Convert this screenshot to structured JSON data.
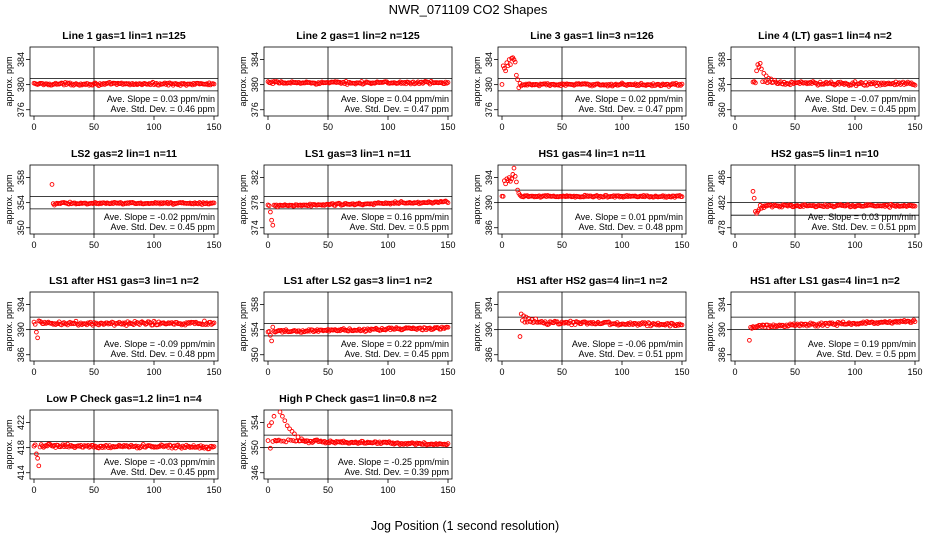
{
  "figure": {
    "title": "NWR_071109  CO2 Shapes",
    "xlabel": "Jog Position (1 second resolution)",
    "ylabel": "approx. ppm",
    "slope_label": "Ave. Slope = ",
    "slope_unit": " ppm/min",
    "sd_label": "Ave. Std. Dev. = ",
    "sd_unit": " ppm",
    "point_color": "#ff0000",
    "axis_color": "#000000"
  },
  "chart_data": [
    {
      "type": "scatter",
      "title": "Line 1 gas=1 lin=1 n=125",
      "xlim": [
        0,
        150
      ],
      "ylim": [
        375,
        386
      ],
      "xticks": [
        0,
        50,
        100,
        150
      ],
      "yticks": [
        376,
        380,
        384
      ],
      "hlines": [
        379,
        381
      ],
      "vline": 50,
      "x_start": 0,
      "profile": {
        "base": 380.1,
        "trend": 0.0,
        "noise": 0.2,
        "spikes": []
      },
      "slope": "0.03",
      "sd": "0.46"
    },
    {
      "type": "scatter",
      "title": "Line 2 gas=1 lin=2 n=125",
      "xlim": [
        0,
        150
      ],
      "ylim": [
        375,
        386
      ],
      "xticks": [
        0,
        50,
        100,
        150
      ],
      "yticks": [
        376,
        380,
        384
      ],
      "hlines": [
        379,
        381
      ],
      "vline": 50,
      "x_start": 0,
      "profile": {
        "base": 380.3,
        "trend": 0.0,
        "noise": 0.2,
        "spikes": []
      },
      "slope": "0.04",
      "sd": "0.47"
    },
    {
      "type": "scatter",
      "title": "Line 3 gas=1 lin=3 n=126",
      "xlim": [
        0,
        150
      ],
      "ylim": [
        375,
        386
      ],
      "xticks": [
        0,
        50,
        100,
        150
      ],
      "yticks": [
        376,
        380,
        384
      ],
      "hlines": [
        379,
        381
      ],
      "vline": 50,
      "x_start": 0,
      "profile": {
        "base": 380.0,
        "trend": 0.0,
        "noise": 0.2,
        "spikes": [
          [
            1,
            383.0
          ],
          [
            2,
            382.6
          ],
          [
            3,
            382.2
          ],
          [
            4,
            383.5
          ],
          [
            5,
            383.0
          ],
          [
            6,
            384.0
          ],
          [
            7,
            383.2
          ],
          [
            8,
            384.2
          ],
          [
            9,
            384.3
          ],
          [
            10,
            384.0
          ],
          [
            11,
            383.6
          ],
          [
            12,
            381.5
          ],
          [
            13,
            380.8
          ],
          [
            14,
            379.5
          ],
          [
            15,
            380.2
          ],
          [
            16,
            379.8
          ]
        ]
      },
      "slope": "0.02",
      "sd": "0.47"
    },
    {
      "type": "scatter",
      "title": "Line 4 (LT) gas=1 lin=4 n=2",
      "xlim": [
        0,
        150
      ],
      "ylim": [
        359,
        370
      ],
      "xticks": [
        0,
        50,
        100,
        150
      ],
      "yticks": [
        360,
        364,
        368
      ],
      "hlines": [
        363,
        365
      ],
      "vline": 50,
      "x_start": 15,
      "profile": {
        "base": 364.2,
        "trend": -0.1,
        "noise": 0.3,
        "spikes": [
          [
            18,
            366.2
          ],
          [
            19,
            367.2
          ],
          [
            20,
            366.8
          ],
          [
            21,
            367.4
          ],
          [
            22,
            366.5
          ],
          [
            24,
            365.8
          ],
          [
            26,
            365.4
          ],
          [
            28,
            365.0
          ],
          [
            30,
            364.9
          ],
          [
            33,
            364.7
          ]
        ]
      },
      "slope": "-0.07",
      "sd": "0.45"
    },
    {
      "type": "scatter",
      "title": "LS2 gas=2 lin=1 n=11",
      "xlim": [
        0,
        150
      ],
      "ylim": [
        349,
        360
      ],
      "xticks": [
        0,
        50,
        100,
        150
      ],
      "yticks": [
        350,
        354,
        358
      ],
      "hlines": [
        353,
        355
      ],
      "vline": 50,
      "x_start": 15,
      "profile": {
        "base": 353.9,
        "trend": 0.0,
        "noise": 0.15,
        "spikes": [
          [
            15,
            356.9
          ],
          [
            17,
            353.6
          ]
        ]
      },
      "slope": "-0.02",
      "sd": "0.45"
    },
    {
      "type": "scatter",
      "title": "LS1 gas=3 lin=1 n=11",
      "xlim": [
        0,
        150
      ],
      "ylim": [
        373,
        384
      ],
      "xticks": [
        0,
        50,
        100,
        150
      ],
      "yticks": [
        374,
        378,
        382
      ],
      "hlines": [
        377,
        379
      ],
      "vline": 50,
      "x_start": 0,
      "profile": {
        "base": 377.8,
        "trend": 0.3,
        "noise": 0.2,
        "spikes": [
          [
            2,
            376.5
          ],
          [
            3,
            375.2
          ],
          [
            4,
            374.4
          ],
          [
            5,
            377.6
          ]
        ]
      },
      "slope": "0.16",
      "sd": "0.5"
    },
    {
      "type": "scatter",
      "title": "HS1 gas=4 lin=1 n=11",
      "xlim": [
        0,
        150
      ],
      "ylim": [
        385,
        396
      ],
      "xticks": [
        0,
        50,
        100,
        150
      ],
      "yticks": [
        386,
        390,
        394
      ],
      "hlines": [
        390,
        392
      ],
      "vline": 50,
      "x_start": 0,
      "profile": {
        "base": 391.0,
        "trend": 0.0,
        "noise": 0.15,
        "spikes": [
          [
            2,
            393.5
          ],
          [
            3,
            393.0
          ],
          [
            4,
            393.8
          ],
          [
            5,
            393.5
          ],
          [
            6,
            394.0
          ],
          [
            7,
            393.4
          ],
          [
            8,
            393.8
          ],
          [
            9,
            394.5
          ],
          [
            10,
            395.5
          ],
          [
            11,
            394.2
          ],
          [
            12,
            393.3
          ],
          [
            13,
            392.0
          ],
          [
            14,
            391.5
          ],
          [
            15,
            391.2
          ]
        ]
      },
      "slope": "0.01",
      "sd": "0.48"
    },
    {
      "type": "scatter",
      "title": "HS2 gas=5 lin=1 n=10",
      "xlim": [
        0,
        150
      ],
      "ylim": [
        477,
        488
      ],
      "xticks": [
        0,
        50,
        100,
        150
      ],
      "yticks": [
        478,
        482,
        486
      ],
      "hlines": [
        480,
        482
      ],
      "vline": 50,
      "x_start": 15,
      "profile": {
        "base": 481.5,
        "trend": 0.0,
        "noise": 0.2,
        "spikes": [
          [
            15,
            483.8
          ],
          [
            16,
            482.7
          ],
          [
            17,
            480.6
          ],
          [
            18,
            480.3
          ],
          [
            19,
            480.6
          ],
          [
            20,
            480.9
          ],
          [
            22,
            481.1
          ],
          [
            24,
            481.2
          ]
        ]
      },
      "slope": "0.03",
      "sd": "0.51"
    },
    {
      "type": "scatter",
      "title": "LS1 after HS1 gas=3 lin=1 n=2",
      "xlim": [
        0,
        150
      ],
      "ylim": [
        385,
        396
      ],
      "xticks": [
        0,
        50,
        100,
        150
      ],
      "yticks": [
        386,
        390,
        394
      ],
      "hlines": [
        390,
        392
      ],
      "vline": 50,
      "x_start": 0,
      "profile": {
        "base": 391.0,
        "trend": 0.0,
        "noise": 0.3,
        "spikes": [
          [
            2,
            389.6
          ],
          [
            3,
            388.7
          ],
          [
            4,
            391.4
          ]
        ]
      },
      "slope": "-0.09",
      "sd": "0.48"
    },
    {
      "type": "scatter",
      "title": "LS1 after LS2 gas=3 lin=1 n=2",
      "xlim": [
        0,
        150
      ],
      "ylim": [
        349,
        360
      ],
      "xticks": [
        0,
        50,
        100,
        150
      ],
      "yticks": [
        350,
        354,
        358
      ],
      "hlines": [
        353,
        355
      ],
      "vline": 50,
      "x_start": 0,
      "profile": {
        "base": 354.0,
        "trend": 0.3,
        "noise": 0.25,
        "spikes": [
          [
            2,
            353.1
          ],
          [
            3,
            352.2
          ],
          [
            4,
            354.4
          ]
        ]
      },
      "slope": "0.22",
      "sd": "0.45"
    },
    {
      "type": "scatter",
      "title": "HS1 after HS2 gas=4 lin=1 n=2",
      "xlim": [
        0,
        150
      ],
      "ylim": [
        385,
        396
      ],
      "xticks": [
        0,
        50,
        100,
        150
      ],
      "yticks": [
        386,
        390,
        394
      ],
      "hlines": [
        390,
        392
      ],
      "vline": 50,
      "x_start": 15,
      "profile": {
        "base": 391.0,
        "trend": -0.2,
        "noise": 0.25,
        "spikes": [
          [
            15,
            388.9
          ],
          [
            16,
            392.5
          ],
          [
            18,
            392.2
          ],
          [
            20,
            392.0
          ],
          [
            22,
            391.8
          ],
          [
            25,
            391.6
          ],
          [
            28,
            391.7
          ]
        ]
      },
      "slope": "-0.06",
      "sd": "0.51"
    },
    {
      "type": "scatter",
      "title": "HS1 after LS1 gas=4 lin=1 n=2",
      "xlim": [
        0,
        150
      ],
      "ylim": [
        385,
        396
      ],
      "xticks": [
        0,
        50,
        100,
        150
      ],
      "yticks": [
        386,
        390,
        394
      ],
      "hlines": [
        390,
        392
      ],
      "vline": 50,
      "x_start": 12,
      "profile": {
        "base": 390.9,
        "trend": 0.4,
        "noise": 0.25,
        "spikes": [
          [
            12,
            388.3
          ],
          [
            14,
            390.2
          ],
          [
            16,
            390.4
          ],
          [
            18,
            390.5
          ]
        ]
      },
      "slope": "0.19",
      "sd": "0.5"
    },
    {
      "type": "scatter",
      "title": "Low P Check gas=1.2 lin=1 n=4",
      "xlim": [
        0,
        150
      ],
      "ylim": [
        413,
        424
      ],
      "xticks": [
        0,
        50,
        100,
        150
      ],
      "yticks": [
        414,
        418,
        422
      ],
      "hlines": [
        417,
        419
      ],
      "vline": 50,
      "x_start": 0,
      "profile": {
        "base": 418.2,
        "trend": -0.1,
        "noise": 0.25,
        "spikes": [
          [
            2,
            417.0
          ],
          [
            3,
            416.3
          ],
          [
            4,
            415.1
          ]
        ]
      },
      "slope": "-0.03",
      "sd": "0.45"
    },
    {
      "type": "scatter",
      "title": "High P Check gas=1 lin=0.8 n=2",
      "xlim": [
        0,
        150
      ],
      "ylim": [
        345,
        356
      ],
      "xticks": [
        0,
        50,
        100,
        150
      ],
      "yticks": [
        346,
        350,
        354
      ],
      "hlines": [
        350,
        352
      ],
      "vline": 50,
      "x_start": 0,
      "profile": {
        "base": 350.8,
        "trend": -0.3,
        "noise": 0.2,
        "spikes": [
          [
            1,
            353.5
          ],
          [
            2,
            349.9
          ],
          [
            3,
            354.0
          ],
          [
            5,
            355.0
          ],
          [
            10,
            356.0
          ],
          [
            12,
            355.0
          ],
          [
            14,
            354.3
          ],
          [
            16,
            353.5
          ],
          [
            18,
            353.0
          ],
          [
            20,
            352.6
          ],
          [
            22,
            352.2
          ],
          [
            25,
            351.7
          ],
          [
            28,
            351.4
          ],
          [
            32,
            351.1
          ],
          [
            36,
            351.0
          ]
        ]
      },
      "slope": "-0.25",
      "sd": "0.39"
    }
  ]
}
